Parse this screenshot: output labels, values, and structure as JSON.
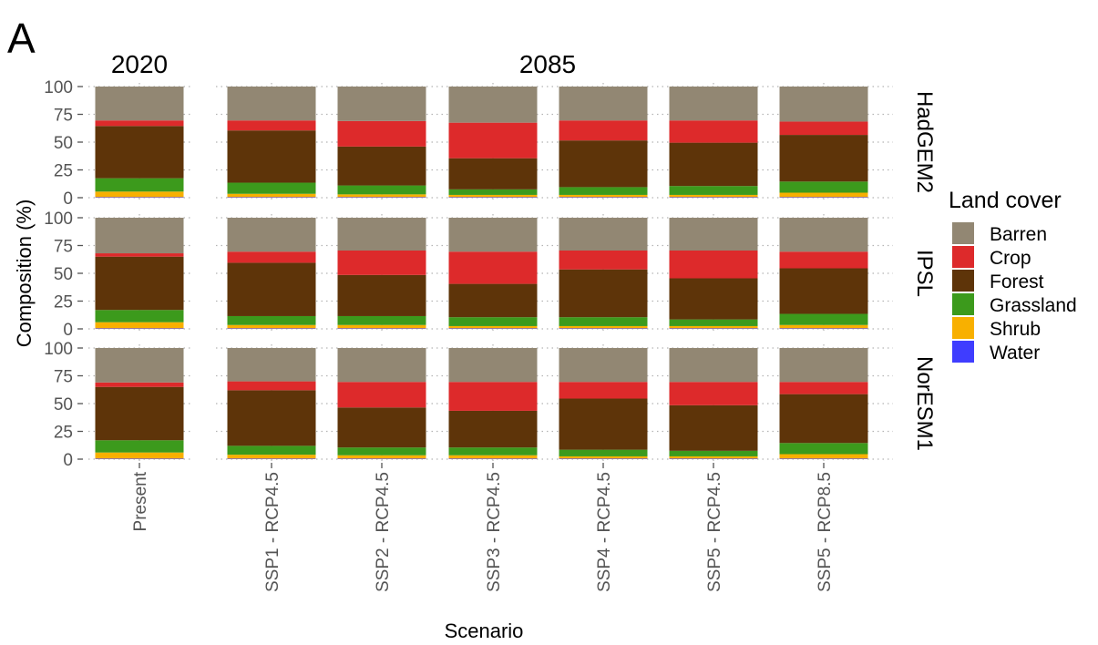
{
  "panel_tag": "A",
  "chart_data": {
    "type": "bar",
    "stacked": true,
    "facet_columns": [
      "2020",
      "2085"
    ],
    "facet_rows": [
      "HadGEM2",
      "IPSL",
      "NorESM1"
    ],
    "categories": [
      "Present",
      "SSP1 - RCP4.5",
      "SSP2 - RCP4.5",
      "SSP3 - RCP4.5",
      "SSP4 - RCP4.5",
      "SSP5 - RCP4.5",
      "SSP5 - RCP8.5"
    ],
    "category_column": [
      0,
      1,
      1,
      1,
      1,
      1,
      1
    ],
    "xlabel": "Scenario",
    "ylabel": "Composition (%)",
    "ylim": [
      0,
      100
    ],
    "yticks": [
      "0",
      "25",
      "50",
      "75",
      "100"
    ],
    "grid": true,
    "legend": {
      "title": "Land cover",
      "placement": "right"
    },
    "series": [
      {
        "name": "Barren",
        "color": "#928773"
      },
      {
        "name": "Crop",
        "color": "#dd2a2b"
      },
      {
        "name": "Forest",
        "color": "#5e3409"
      },
      {
        "name": "Grassland",
        "color": "#3c9a1c"
      },
      {
        "name": "Shrub",
        "color": "#f8b000"
      },
      {
        "name": "Water",
        "color": "#3f3dff"
      }
    ],
    "stack_order": [
      "Water",
      "Shrub",
      "Grassland",
      "Forest",
      "Crop",
      "Barren"
    ],
    "values": {
      "HadGEM2": {
        "Water": [
          0.5,
          0.5,
          0.5,
          0.5,
          0.5,
          0.5,
          0.5
        ],
        "Shrub": [
          5,
          3,
          2.5,
          2,
          2,
          2,
          4
        ],
        "Grassland": [
          12,
          10,
          8,
          5,
          7,
          8,
          10
        ],
        "Forest": [
          47,
          47,
          35,
          28,
          42,
          39,
          42
        ],
        "Crop": [
          5,
          9,
          23,
          32,
          18,
          20,
          12
        ],
        "Barren": [
          30.5,
          30.5,
          31,
          32.5,
          30.5,
          30.5,
          31.5
        ]
      },
      "IPSL": {
        "Water": [
          0.5,
          0.5,
          0.5,
          0.5,
          0.5,
          0.5,
          0.5
        ],
        "Shrub": [
          5.5,
          3,
          3,
          2,
          2,
          2,
          3
        ],
        "Grassland": [
          11,
          8,
          8,
          8,
          8,
          6,
          10
        ],
        "Forest": [
          48,
          48,
          37,
          30,
          43,
          37,
          41
        ],
        "Crop": [
          3,
          10,
          22,
          29,
          17,
          25,
          15
        ],
        "Barren": [
          32,
          30.5,
          29.5,
          30.5,
          29.5,
          29.5,
          30.5
        ]
      },
      "NorESM1": {
        "Water": [
          0.5,
          0.5,
          0.5,
          0.5,
          0.5,
          0.5,
          0.5
        ],
        "Shrub": [
          5.5,
          3.5,
          3,
          3,
          2,
          2,
          4
        ],
        "Grassland": [
          11,
          8,
          7,
          7,
          6,
          5,
          10
        ],
        "Forest": [
          48,
          50,
          36,
          33,
          46,
          41,
          44
        ],
        "Crop": [
          4,
          8,
          23,
          26,
          15,
          21,
          11
        ],
        "Barren": [
          31,
          30,
          30.5,
          30.5,
          30.5,
          30.5,
          30.5
        ]
      }
    }
  }
}
